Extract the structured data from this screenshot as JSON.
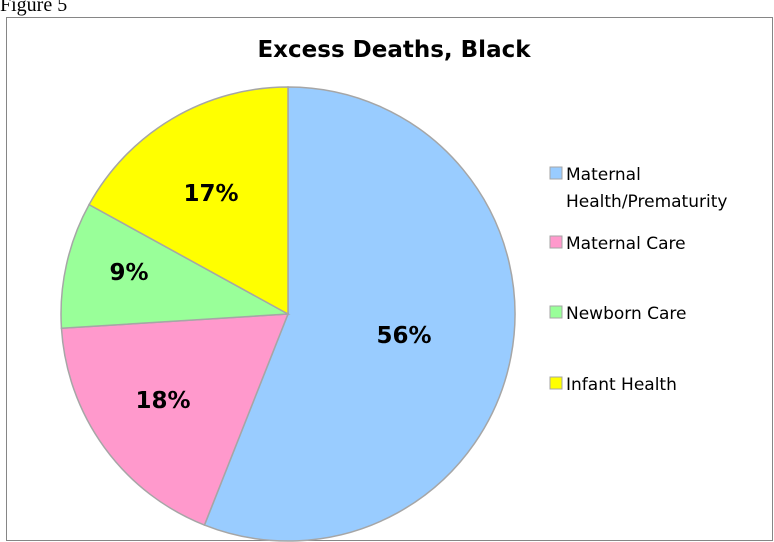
{
  "caption": "Figure 5",
  "chart_data": {
    "type": "pie",
    "title": "Excess Deaths, Black",
    "categories": [
      "Maternal Health/Prematurity",
      "Maternal Care",
      "Newborn Care",
      "Infant Health"
    ],
    "legend_lines": [
      [
        "Maternal",
        "Health/Prematurity"
      ],
      [
        "Maternal Care"
      ],
      [
        "Newborn Care"
      ],
      [
        "Infant Health"
      ]
    ],
    "values": [
      56,
      18,
      9,
      17
    ],
    "value_labels": [
      "56%",
      "18%",
      "9%",
      "17%"
    ],
    "colors": [
      "#99ccff",
      "#ff99cc",
      "#99ff99",
      "#ffff00"
    ],
    "legend_position": "right"
  }
}
